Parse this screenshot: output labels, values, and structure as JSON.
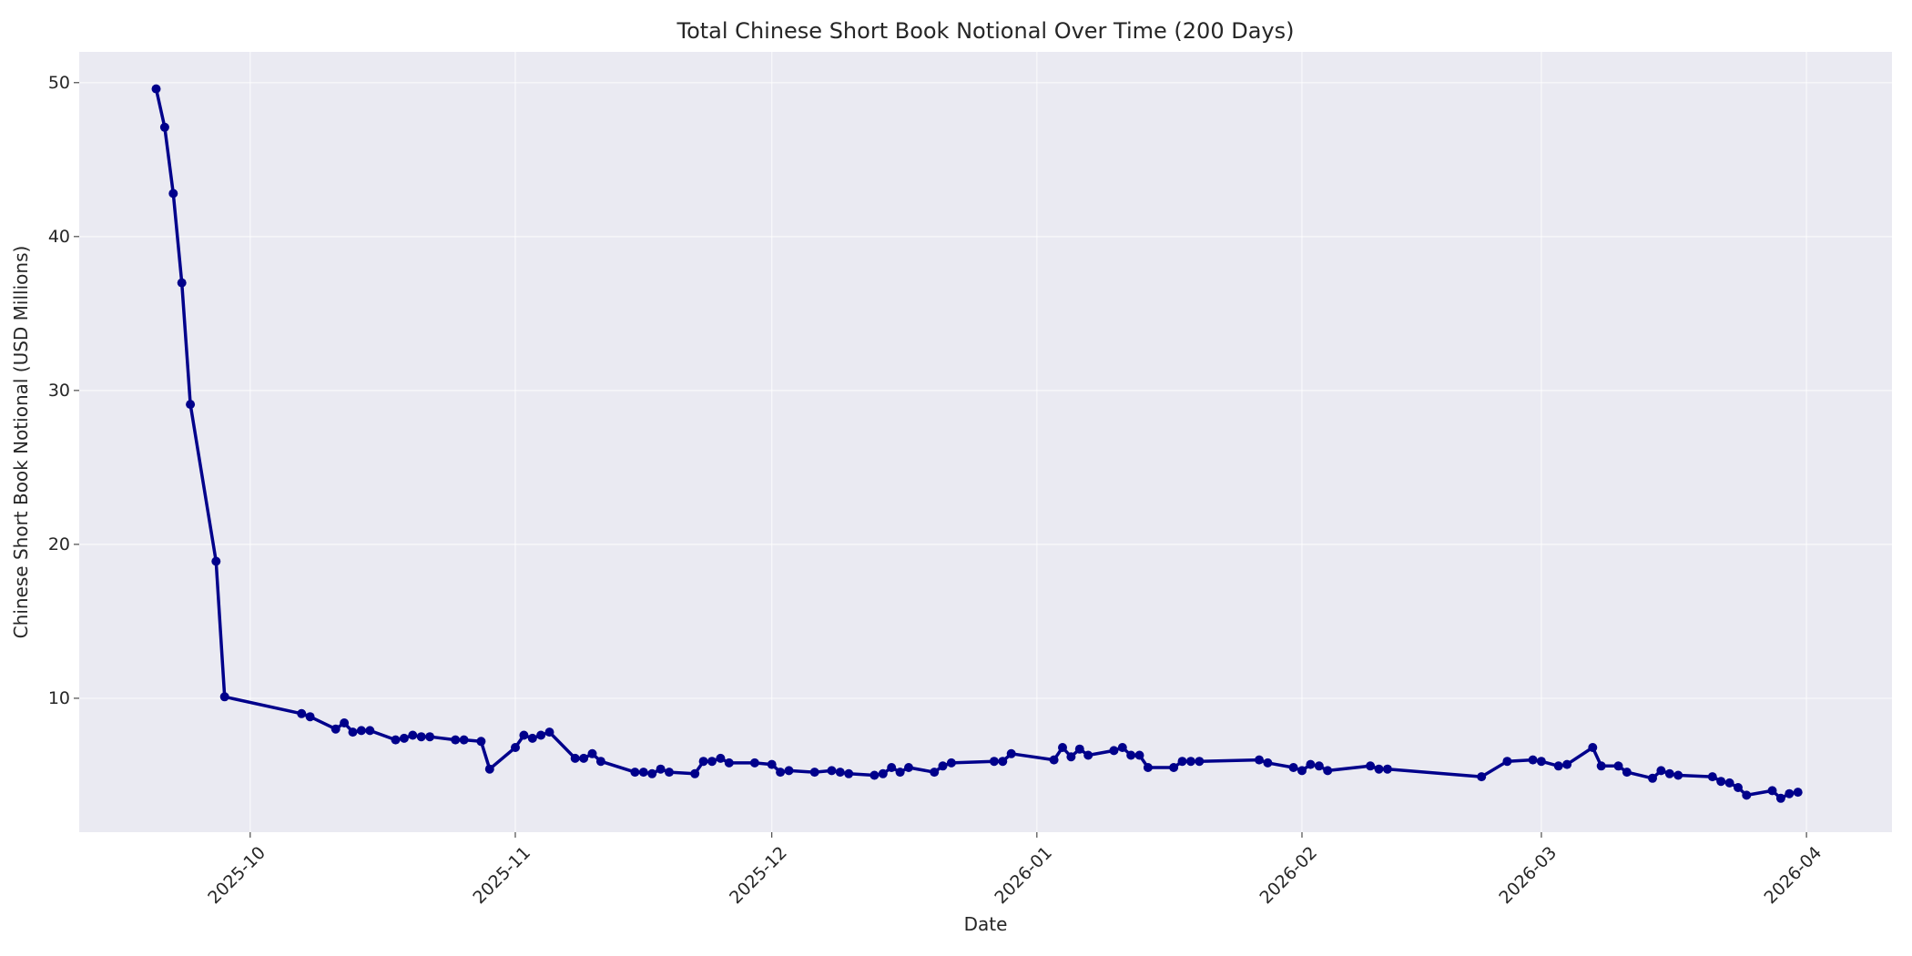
{
  "chart_data": {
    "type": "line",
    "title": "Total Chinese Short Book Notional Over Time (200 Days)",
    "xlabel": "Date",
    "ylabel": "Chinese Short Book Notional (USD Millions)",
    "ylim": [
      1.3,
      52
    ],
    "xlim": [
      "2025-09-11",
      "2026-04-11"
    ],
    "grid": true,
    "line_color": "#00008b",
    "background_color": "#eaeaf2",
    "x_ticks": [
      "2025-10",
      "2025-11",
      "2025-12",
      "2026-01",
      "2026-02",
      "2026-03",
      "2026-04"
    ],
    "y_ticks": [
      10,
      20,
      30,
      40,
      50
    ],
    "series": [
      {
        "points": [
          [
            "2025-09-20",
            49.6
          ],
          [
            "2025-09-21",
            47.1
          ],
          [
            "2025-09-22",
            42.8
          ],
          [
            "2025-09-23",
            37.0
          ],
          [
            "2025-09-24",
            29.1
          ],
          [
            "2025-09-27",
            18.9
          ],
          [
            "2025-09-28",
            10.1
          ],
          [
            "2025-10-07",
            9.0
          ],
          [
            "2025-10-08",
            8.8
          ],
          [
            "2025-10-11",
            8.0
          ],
          [
            "2025-10-12",
            8.4
          ],
          [
            "2025-10-13",
            7.8
          ],
          [
            "2025-10-14",
            7.9
          ],
          [
            "2025-10-15",
            7.9
          ],
          [
            "2025-10-18",
            7.3
          ],
          [
            "2025-10-19",
            7.4
          ],
          [
            "2025-10-20",
            7.6
          ],
          [
            "2025-10-21",
            7.5
          ],
          [
            "2025-10-22",
            7.5
          ],
          [
            "2025-10-25",
            7.3
          ],
          [
            "2025-10-26",
            7.3
          ],
          [
            "2025-10-28",
            7.2
          ],
          [
            "2025-10-29",
            5.4
          ],
          [
            "2025-11-01",
            6.8
          ],
          [
            "2025-11-02",
            7.6
          ],
          [
            "2025-11-03",
            7.4
          ],
          [
            "2025-11-04",
            7.6
          ],
          [
            "2025-11-05",
            7.8
          ],
          [
            "2025-11-08",
            6.1
          ],
          [
            "2025-11-09",
            6.1
          ],
          [
            "2025-11-10",
            6.4
          ],
          [
            "2025-11-11",
            5.9
          ],
          [
            "2025-11-15",
            5.2
          ],
          [
            "2025-11-16",
            5.2
          ],
          [
            "2025-11-17",
            5.1
          ],
          [
            "2025-11-18",
            5.4
          ],
          [
            "2025-11-19",
            5.2
          ],
          [
            "2025-11-22",
            5.1
          ],
          [
            "2025-11-23",
            5.9
          ],
          [
            "2025-11-24",
            5.9
          ],
          [
            "2025-11-25",
            6.1
          ],
          [
            "2025-11-26",
            5.8
          ],
          [
            "2025-11-29",
            5.8
          ],
          [
            "2025-12-01",
            5.7
          ],
          [
            "2025-12-02",
            5.2
          ],
          [
            "2025-12-03",
            5.3
          ],
          [
            "2025-12-06",
            5.2
          ],
          [
            "2025-12-08",
            5.3
          ],
          [
            "2025-12-09",
            5.2
          ],
          [
            "2025-12-10",
            5.1
          ],
          [
            "2025-12-13",
            5.0
          ],
          [
            "2025-12-14",
            5.1
          ],
          [
            "2025-12-15",
            5.5
          ],
          [
            "2025-12-16",
            5.2
          ],
          [
            "2025-12-17",
            5.5
          ],
          [
            "2025-12-20",
            5.2
          ],
          [
            "2025-12-21",
            5.6
          ],
          [
            "2025-12-22",
            5.8
          ],
          [
            "2025-12-27",
            5.9
          ],
          [
            "2025-12-28",
            5.9
          ],
          [
            "2025-12-29",
            6.4
          ],
          [
            "2026-01-03",
            6.0
          ],
          [
            "2026-01-04",
            6.8
          ],
          [
            "2026-01-05",
            6.2
          ],
          [
            "2026-01-06",
            6.7
          ],
          [
            "2026-01-07",
            6.3
          ],
          [
            "2026-01-10",
            6.6
          ],
          [
            "2026-01-11",
            6.8
          ],
          [
            "2026-01-12",
            6.3
          ],
          [
            "2026-01-13",
            6.3
          ],
          [
            "2026-01-14",
            5.5
          ],
          [
            "2026-01-17",
            5.5
          ],
          [
            "2026-01-18",
            5.9
          ],
          [
            "2026-01-19",
            5.9
          ],
          [
            "2026-01-20",
            5.9
          ],
          [
            "2026-01-27",
            6.0
          ],
          [
            "2026-01-28",
            5.8
          ],
          [
            "2026-01-31",
            5.5
          ],
          [
            "2026-02-01",
            5.3
          ],
          [
            "2026-02-02",
            5.7
          ],
          [
            "2026-02-03",
            5.6
          ],
          [
            "2026-02-04",
            5.3
          ],
          [
            "2026-02-09",
            5.6
          ],
          [
            "2026-02-10",
            5.4
          ],
          [
            "2026-02-11",
            5.4
          ],
          [
            "2026-02-22",
            4.9
          ],
          [
            "2026-02-25",
            5.9
          ],
          [
            "2026-02-28",
            6.0
          ],
          [
            "2026-03-01",
            5.9
          ],
          [
            "2026-03-03",
            5.6
          ],
          [
            "2026-03-04",
            5.7
          ],
          [
            "2026-03-07",
            6.8
          ],
          [
            "2026-03-08",
            5.6
          ],
          [
            "2026-03-10",
            5.6
          ],
          [
            "2026-03-11",
            5.2
          ],
          [
            "2026-03-14",
            4.8
          ],
          [
            "2026-03-15",
            5.3
          ],
          [
            "2026-03-16",
            5.1
          ],
          [
            "2026-03-17",
            5.0
          ],
          [
            "2026-03-21",
            4.9
          ],
          [
            "2026-03-22",
            4.6
          ],
          [
            "2026-03-23",
            4.5
          ],
          [
            "2026-03-24",
            4.2
          ],
          [
            "2026-03-25",
            3.7
          ],
          [
            "2026-03-28",
            4.0
          ],
          [
            "2026-03-29",
            3.5
          ],
          [
            "2026-03-30",
            3.8
          ],
          [
            "2026-03-31",
            3.9
          ]
        ]
      }
    ]
  }
}
